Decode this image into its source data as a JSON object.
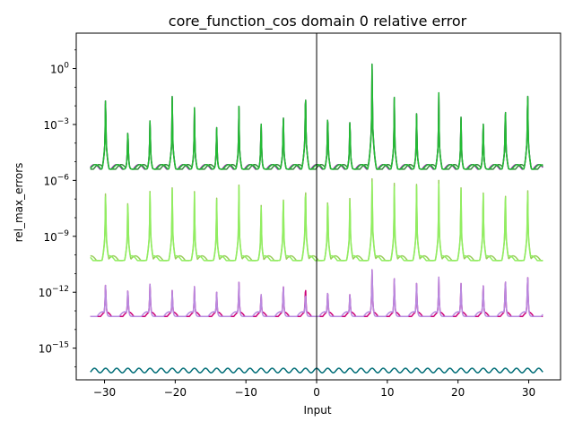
{
  "chart_data": {
    "type": "line",
    "title": "core_function_cos domain 0 relative error",
    "xlabel": "Input",
    "ylabel": "rel_max_errors",
    "xlim": [
      -34.0,
      34.5
    ],
    "ylim": [
      -16.7,
      1.9
    ],
    "yscale": "log10",
    "x_ticks": [
      -30,
      -20,
      -10,
      0,
      10,
      20,
      30
    ],
    "x_tick_labels": [
      "−30",
      "−20",
      "−10",
      "0",
      "10",
      "20",
      "30"
    ],
    "y_ticks_log10": [
      0,
      -3,
      -6,
      -9,
      -12,
      -15
    ],
    "y_tick_labels": [
      {
        "base": "10",
        "exp": "0"
      },
      {
        "base": "10",
        "exp": "−3"
      },
      {
        "base": "10",
        "exp": "−6"
      },
      {
        "base": "10",
        "exp": "−9"
      },
      {
        "base": "10",
        "exp": "−12"
      },
      {
        "base": "10",
        "exp": "−15"
      }
    ],
    "vertical_line_x": 0,
    "grid": false,
    "legend": "none",
    "peak_x": [
      -29.85,
      -26.7,
      -23.56,
      -20.42,
      -17.28,
      -14.14,
      -10.99,
      -7.85,
      -4.71,
      -1.57,
      1.57,
      4.71,
      7.85,
      10.99,
      14.14,
      17.28,
      20.42,
      23.56,
      26.7,
      29.85
    ],
    "series": [
      {
        "color": "#8b1a9e",
        "baseline_log10": -5.4,
        "peak_log10": [
          -1.0,
          -3.0,
          -2.4,
          -1.2,
          -2.1,
          -3.0,
          -1.9,
          -2.7,
          -2.1,
          -0.6,
          -2.0,
          -2.4,
          0.9,
          -1.4,
          -2.2,
          -1.3,
          -2.4,
          -2.6,
          -1.6,
          -0.7
        ]
      },
      {
        "color": "#9acd5c",
        "baseline_log10": -10.3,
        "peak_log10": [
          -6.0,
          -6.5,
          -6.0,
          -6.1,
          -6.6,
          -6.7,
          -6.1,
          -7.0,
          -6.4,
          -5.6,
          -6.3,
          -6.3,
          -5.4,
          -6.0,
          -5.9,
          -6.0,
          -6.1,
          -6.1,
          -6.0,
          -5.8
        ]
      },
      {
        "color": "#90ee60",
        "baseline_log10": -10.3,
        "peak_log10": [
          -6.2,
          -6.6,
          -6.1,
          -6.2,
          -6.7,
          -6.8,
          -6.2,
          -7.1,
          -6.5,
          -5.8,
          -6.4,
          -6.5,
          -5.6,
          -6.2,
          -6.0,
          -6.2,
          -6.2,
          -6.2,
          -6.1,
          -6.0
        ]
      },
      {
        "color": "#cc0077",
        "baseline_log10": -13.3,
        "peak_log10": [
          -11.3,
          -11.6,
          -11.3,
          -11.8,
          -11.7,
          -11.9,
          -11.4,
          -12.0,
          -11.4,
          -11.5,
          -11.7,
          -11.9,
          -10.5,
          -11.2,
          -11.4,
          -11.2,
          -11.4,
          -11.4,
          -11.0,
          -10.8
        ]
      },
      {
        "color": "#b88ae0",
        "baseline_log10": -13.3,
        "peak_log10": [
          -11.3,
          -11.6,
          -11.3,
          -11.8,
          -11.7,
          -11.9,
          -11.4,
          -12.0,
          -11.4,
          -11.9,
          -11.7,
          -11.9,
          -10.5,
          -11.2,
          -11.4,
          -11.2,
          -11.4,
          -11.4,
          -11.0,
          -10.8
        ]
      },
      {
        "color": "#3a8a40",
        "baseline_log10": -5.4,
        "peak_log10": [
          -1.2,
          -3.1,
          -2.5,
          -1.3,
          -2.2,
          -3.1,
          -2.0,
          -2.8,
          -2.2,
          -0.7,
          -2.1,
          -2.5,
          0.6,
          -1.5,
          -2.3,
          -1.4,
          -2.5,
          -2.7,
          -1.7,
          -0.8
        ]
      },
      {
        "color": "#22bb33",
        "baseline_log10": -5.4,
        "peak_log10": [
          -1.0,
          -3.0,
          -2.4,
          -1.2,
          -2.1,
          -3.0,
          -1.9,
          -2.7,
          -2.1,
          -0.6,
          -2.0,
          -2.4,
          0.9,
          -1.4,
          -2.2,
          -1.3,
          -2.4,
          -2.6,
          -1.6,
          -0.7
        ]
      },
      {
        "color": "#006d77",
        "baseline_log10": -16.2,
        "peak_log10": []
      }
    ]
  }
}
